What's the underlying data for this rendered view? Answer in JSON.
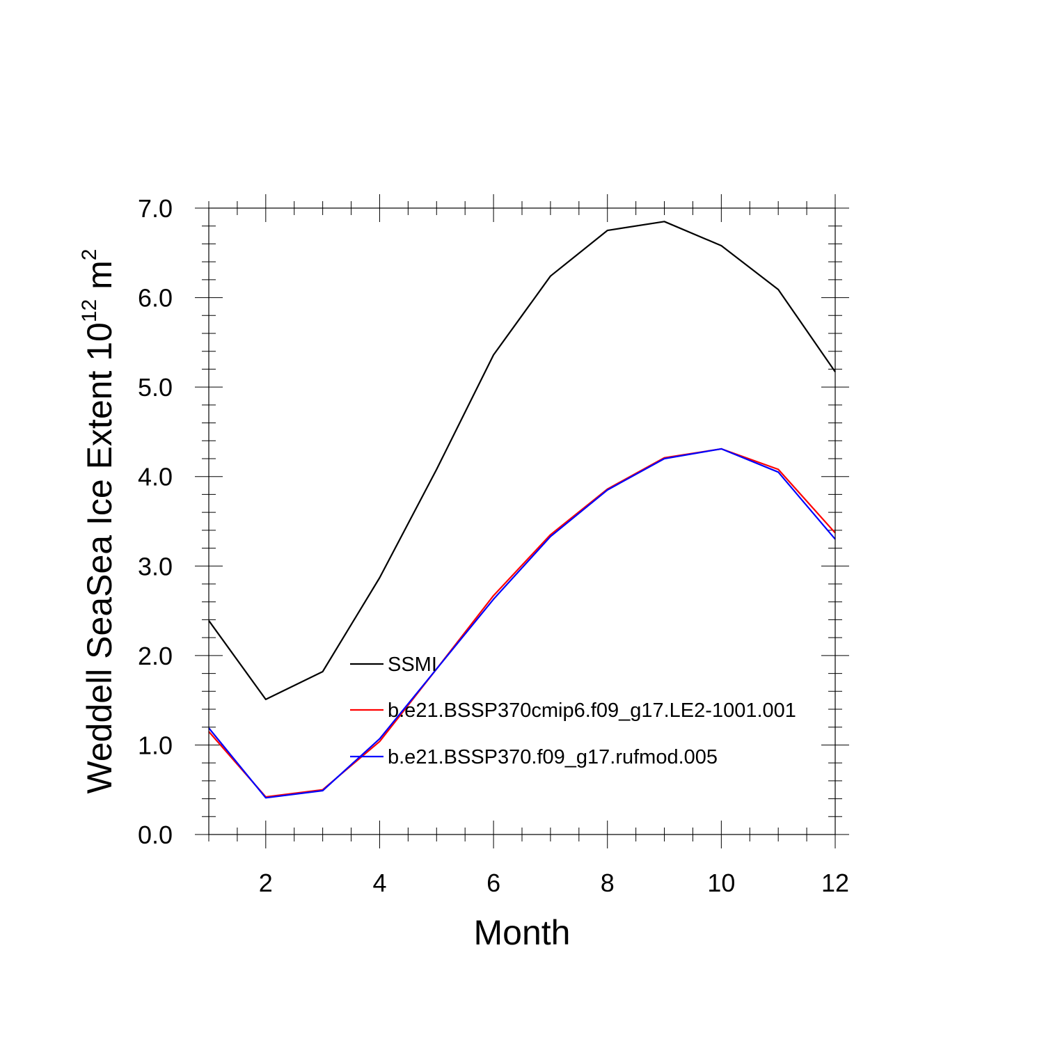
{
  "chart_data": {
    "type": "line",
    "title": "",
    "xlabel": "Month",
    "ylabel_main": "Weddell SeaSea Ice Extent 10",
    "ylabel_exp1": "12",
    "ylabel_unit": " m",
    "ylabel_exp2": "2",
    "xlim": [
      1,
      12
    ],
    "ylim": [
      0,
      7
    ],
    "xticks": [
      2,
      4,
      6,
      8,
      10,
      12
    ],
    "xtick_labels": [
      "2",
      "4",
      "6",
      "8",
      "10",
      "12"
    ],
    "yticks": [
      0,
      1,
      2,
      3,
      4,
      5,
      6,
      7
    ],
    "ytick_labels": [
      "0.0",
      "1.0",
      "2.0",
      "3.0",
      "4.0",
      "5.0",
      "6.0",
      "7.0"
    ],
    "x": [
      1,
      2,
      3,
      4,
      5,
      6,
      7,
      8,
      9,
      10,
      11,
      12
    ],
    "series": [
      {
        "name": "SSMI",
        "color": "#000000",
        "values": [
          2.39,
          1.51,
          1.82,
          2.87,
          4.08,
          5.36,
          6.24,
          6.75,
          6.85,
          6.58,
          6.09,
          5.17
        ]
      },
      {
        "name": "b.e21.BSSP370cmip6.f09_g17.LE2-1001.001",
        "color": "#ff0000",
        "values": [
          1.15,
          0.42,
          0.5,
          1.04,
          1.85,
          2.67,
          3.35,
          3.86,
          4.21,
          4.31,
          4.08,
          3.37
        ]
      },
      {
        "name": "b.e21.BSSP370.f09_g17.rufmod.005",
        "color": "#0000ff",
        "values": [
          1.19,
          0.41,
          0.49,
          1.07,
          1.85,
          2.63,
          3.33,
          3.85,
          4.2,
          4.31,
          4.05,
          3.3
        ]
      }
    ],
    "legend_position": "center-right"
  }
}
